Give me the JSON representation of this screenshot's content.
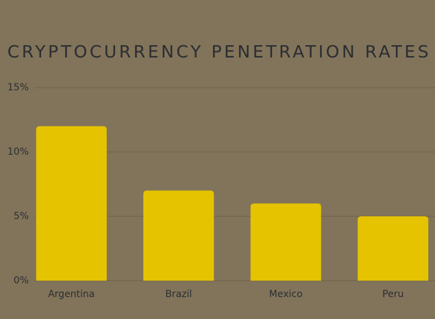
{
  "chart_data": {
    "type": "bar",
    "title": "CRYPTOCURRENCY PENETRATION RATES",
    "categories": [
      "Argentina",
      "Brazil",
      "Mexico",
      "Peru"
    ],
    "values": [
      12,
      7,
      6,
      5
    ],
    "color": "#e6c300",
    "ylim": [
      0,
      15
    ],
    "yticks": [
      {
        "value": 0,
        "label": "0%"
      },
      {
        "value": 5,
        "label": "5%"
      },
      {
        "value": 10,
        "label": "10%"
      },
      {
        "value": 15,
        "label": "15%"
      }
    ],
    "grid": true
  }
}
